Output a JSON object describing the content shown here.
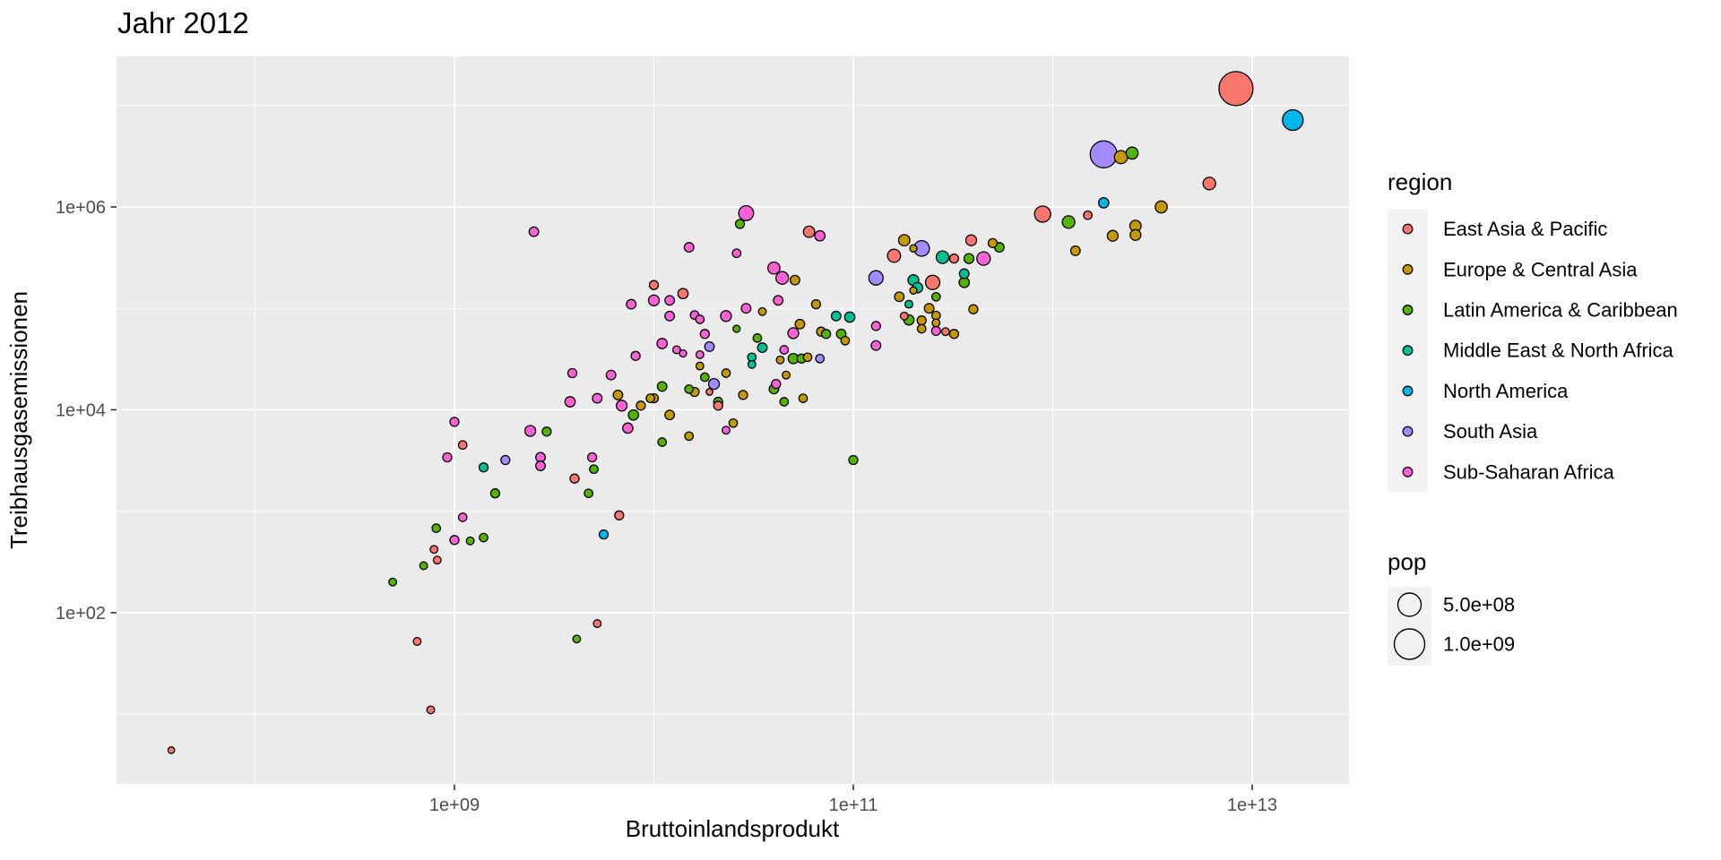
{
  "title": "Jahr 2012",
  "axes": {
    "x": {
      "label": "Bruttoinlandsprodukt",
      "scale": "log10",
      "domain": [
        20200000.0,
        30600000000000.0
      ],
      "ticks": [
        {
          "v": 1000000000.0,
          "label": "1e+09"
        },
        {
          "v": 100000000000.0,
          "label": "1e+11"
        },
        {
          "v": 10000000000000.0,
          "label": "1e+13"
        }
      ],
      "minor": [
        100000000.0,
        10000000000.0,
        1000000000000.0
      ]
    },
    "y": {
      "label": "Treibhausgasemissionen",
      "scale": "log10",
      "domain": [
        2.05,
        30500000.0
      ],
      "ticks": [
        {
          "v": 1000000.0,
          "label": "1e+06"
        },
        {
          "v": 10000.0,
          "label": "1e+04"
        },
        {
          "v": 100.0,
          "label": "1e+02"
        }
      ],
      "minor": [
        10000000.0,
        100000.0,
        1000.0,
        10.0
      ]
    }
  },
  "legend": {
    "title": "region"
  },
  "size_legend": {
    "title": "pop",
    "items": [
      {
        "label": "5.0e+08",
        "radius": 13
      },
      {
        "label": "1.0e+09",
        "radius": 17
      }
    ]
  },
  "style": {
    "panel_bg": "#EBEBEB",
    "grid_color": "#FFFFFF",
    "tick_color": "#333333",
    "tick_text": "#4D4D4D",
    "point_stroke": "#000000",
    "legend_key_bg": "#F2F2F2"
  },
  "chart_data": {
    "type": "scatter",
    "title": "Jahr 2012",
    "xlabel": "Bruttoinlandsprodukt",
    "ylabel": "Treibhausgasemissionen",
    "x_scale": "log10",
    "y_scale": "log10",
    "regions": [
      {
        "name": "East Asia & Pacific",
        "color": "#F8766D"
      },
      {
        "name": "Europe & Central Asia",
        "color": "#C49A00"
      },
      {
        "name": "Latin America & Caribbean",
        "color": "#53B400"
      },
      {
        "name": "Middle East & North Africa",
        "color": "#00C094"
      },
      {
        "name": "North America",
        "color": "#00B6EB"
      },
      {
        "name": "South Asia",
        "color": "#A58AFF"
      },
      {
        "name": "Sub-Saharan Africa",
        "color": "#FB61D7"
      }
    ],
    "point_format": [
      "region_index",
      "gdp",
      "ghg_emissions",
      "radius_px"
    ],
    "points": [
      [
        0,
        8300000000000.0,
        14700000.0,
        19
      ],
      [
        4,
        16000000000000.0,
        7200000.0,
        11.5
      ],
      [
        5,
        1800000000000.0,
        3300000.0,
        15
      ],
      [
        1,
        2200000000000.0,
        3100000.0,
        7.3
      ],
      [
        2,
        2500000000000.0,
        3400000.0,
        6.7
      ],
      [
        0,
        6100000000000.0,
        1700000.0,
        7
      ],
      [
        4,
        1800000000000.0,
        1100000.0,
        5.7
      ],
      [
        1,
        3500000000000.0,
        1000000.0,
        6.7
      ],
      [
        0,
        890000000000.0,
        850000.0,
        9
      ],
      [
        2,
        1200000000000.0,
        710000.0,
        7
      ],
      [
        0,
        1500000000000.0,
        830000.0,
        4.7
      ],
      [
        1,
        2600000000000.0,
        650000.0,
        6.3
      ],
      [
        1,
        2600000000000.0,
        530000.0,
        6
      ],
      [
        1,
        2000000000000.0,
        520000.0,
        6
      ],
      [
        1,
        1300000000000.0,
        370000.0,
        5.3
      ],
      [
        0,
        390000000000.0,
        470000.0,
        6
      ],
      [
        1,
        500000000000.0,
        440000.0,
        5
      ],
      [
        2,
        540000000000.0,
        400000.0,
        5.3
      ],
      [
        6,
        450000000000.0,
        310000.0,
        7.5
      ],
      [
        2,
        380000000000.0,
        310000.0,
        5.5
      ],
      [
        2,
        360000000000.0,
        180000.0,
        5.7
      ],
      [
        6,
        29000000000.0,
        870000.0,
        8.3
      ],
      [
        2,
        27000000000.0,
        680000.0,
        5
      ],
      [
        0,
        60000000000.0,
        570000.0,
        6.3
      ],
      [
        6,
        68000000000.0,
        520000.0,
        5.7
      ],
      [
        6,
        15000000000.0,
        400000.0,
        5.3
      ],
      [
        6,
        26000000000.0,
        350000.0,
        4.7
      ],
      [
        6,
        40000000000.0,
        250000.0,
        6.7
      ],
      [
        6,
        44000000000.0,
        200000.0,
        7
      ],
      [
        1,
        51000000000.0,
        190000.0,
        5.3
      ],
      [
        0,
        14000000000.0,
        140000.0,
        5.7
      ],
      [
        6,
        42000000000.0,
        120000.0,
        5.3
      ],
      [
        1,
        65000000000.0,
        110000.0,
        5
      ],
      [
        6,
        29000000000.0,
        100000.0,
        5.3
      ],
      [
        1,
        35000000000.0,
        93000.0,
        4.3
      ],
      [
        6,
        16000000000.0,
        86000.0,
        4.7
      ],
      [
        6,
        17000000000.0,
        78000.0,
        4.7
      ],
      [
        6,
        23000000000.0,
        84000.0,
        6
      ],
      [
        2,
        26000000000.0,
        63000.0,
        4
      ],
      [
        6,
        18000000000.0,
        56000.0,
        5
      ],
      [
        3,
        82000000000.0,
        84000.0,
        5.3
      ],
      [
        3,
        96000000000.0,
        82000.0,
        5.7
      ],
      [
        1,
        54000000000.0,
        70000.0,
        5.3
      ],
      [
        1,
        69000000000.0,
        59000.0,
        5
      ],
      [
        2,
        73000000000.0,
        56000.0,
        5
      ],
      [
        6,
        50000000000.0,
        57000.0,
        6
      ],
      [
        2,
        87000000000.0,
        56000.0,
        5.3
      ],
      [
        1,
        91000000000.0,
        48000.0,
        4.7
      ],
      [
        5,
        19000000000.0,
        42000.0,
        5.3
      ],
      [
        6,
        17000000000.0,
        35000.0,
        4.3
      ],
      [
        3,
        35000000000.0,
        41000.0,
        5.3
      ],
      [
        2,
        33000000000.0,
        51000.0,
        4.7
      ],
      [
        1,
        17000000000.0,
        27000.0,
        4.3
      ],
      [
        3,
        31000000000.0,
        33000.0,
        4.7
      ],
      [
        3,
        31000000000.0,
        28000.0,
        4.3
      ],
      [
        6,
        45000000000.0,
        39000.0,
        4.7
      ],
      [
        2,
        50000000000.0,
        32000.0,
        5.7
      ],
      [
        2,
        55000000000.0,
        32000.0,
        5
      ],
      [
        1,
        43000000000.0,
        31000.0,
        4.3
      ],
      [
        1,
        59000000000.0,
        33000.0,
        4.7
      ],
      [
        5,
        68000000000.0,
        32000.0,
        4.7
      ],
      [
        2,
        18000000000.0,
        21000.0,
        4.7
      ],
      [
        1,
        23000000000.0,
        23000.0,
        4.7
      ],
      [
        5,
        20000000000.0,
        18000.0,
        6
      ],
      [
        1,
        46000000000.0,
        22000.0,
        4.3
      ],
      [
        6,
        41000000000.0,
        18000.0,
        5
      ],
      [
        1,
        180000000000.0,
        470000.0,
        6.3
      ],
      [
        0,
        160000000000.0,
        330000.0,
        7.3
      ],
      [
        5,
        220000000000.0,
        390000.0,
        8.7
      ],
      [
        1,
        200000000000.0,
        390000.0,
        4
      ],
      [
        3,
        280000000000.0,
        320000.0,
        7
      ],
      [
        0,
        320000000000.0,
        310000.0,
        5
      ],
      [
        5,
        130000000000.0,
        200000.0,
        8
      ],
      [
        3,
        200000000000.0,
        190000.0,
        6
      ],
      [
        0,
        250000000000.0,
        180000.0,
        8
      ],
      [
        3,
        210000000000.0,
        160000.0,
        5.7
      ],
      [
        1,
        200000000000.0,
        150000.0,
        4
      ],
      [
        3,
        360000000000.0,
        220000.0,
        5.3
      ],
      [
        1,
        170000000000.0,
        130000.0,
        5.3
      ],
      [
        2,
        260000000000.0,
        130000.0,
        4.7
      ],
      [
        3,
        190000000000.0,
        110000.0,
        4.3
      ],
      [
        1,
        240000000000.0,
        100000.0,
        5.3
      ],
      [
        0,
        180000000000.0,
        84000.0,
        4.3
      ],
      [
        2,
        190000000000.0,
        77000.0,
        5.7
      ],
      [
        1,
        220000000000.0,
        76000.0,
        5
      ],
      [
        1,
        260000000000.0,
        85000.0,
        4.7
      ],
      [
        1,
        260000000000.0,
        72000.0,
        4.3
      ],
      [
        1,
        220000000000.0,
        63000.0,
        4.7
      ],
      [
        6,
        260000000000.0,
        60000.0,
        5
      ],
      [
        0,
        290000000000.0,
        59000.0,
        4.3
      ],
      [
        1,
        320000000000.0,
        56000.0,
        5
      ],
      [
        6,
        130000000000.0,
        67000.0,
        5
      ],
      [
        6,
        130000000000.0,
        43000.0,
        5.3
      ],
      [
        1,
        400000000000.0,
        98000.0,
        5
      ],
      [
        6,
        2500000000.0,
        570000.0,
        5.3
      ],
      [
        0,
        10000000000.0,
        170000.0,
        5
      ],
      [
        6,
        10000000000.0,
        120000.0,
        6
      ],
      [
        6,
        7700000000.0,
        110000.0,
        5.3
      ],
      [
        6,
        12000000000.0,
        120000.0,
        5.3
      ],
      [
        6,
        12000000000.0,
        84000.0,
        5.3
      ],
      [
        6,
        11000000000.0,
        45000.0,
        5.7
      ],
      [
        6,
        13000000000.0,
        39000.0,
        4.3
      ],
      [
        6,
        14000000000.0,
        36000.0,
        4
      ],
      [
        6,
        8100000000.0,
        34000.0,
        5
      ],
      [
        6,
        3900000000.0,
        23000.0,
        5
      ],
      [
        6,
        6100000000.0,
        22000.0,
        5.3
      ],
      [
        6,
        3800000000.0,
        12000.0,
        5.7
      ],
      [
        6,
        5200000000.0,
        13000.0,
        5.3
      ],
      [
        1,
        6600000000.0,
        14000.0,
        5.3
      ],
      [
        6,
        6900000000.0,
        11000.0,
        6
      ],
      [
        1,
        8600000000.0,
        11000.0,
        5
      ],
      [
        1,
        9600000000.0,
        13000.0,
        4.7
      ],
      [
        1,
        10000000000.0,
        13000.0,
        5
      ],
      [
        2,
        11000000000.0,
        17000.0,
        5.3
      ],
      [
        2,
        7900000000.0,
        8900.0,
        5.7
      ],
      [
        1,
        12000000000.0,
        8900.0,
        5.3
      ],
      [
        6,
        7400000000.0,
        6600.0,
        5.7
      ],
      [
        2,
        11000000000.0,
        4800.0,
        4.7
      ],
      [
        1,
        15000000000.0,
        5500.0,
        4.7
      ],
      [
        2,
        15000000000.0,
        16000.0,
        4.7
      ],
      [
        6,
        1000000000.0,
        7600.0,
        5
      ],
      [
        0,
        1100000000.0,
        4500.0,
        4.7
      ],
      [
        6,
        920000000.0,
        3400.0,
        5
      ],
      [
        6,
        2400000000.0,
        6200.0,
        6
      ],
      [
        2,
        2900000000.0,
        6100.0,
        5
      ],
      [
        3,
        1400000000.0,
        2700.0,
        5
      ],
      [
        5,
        1800000000.0,
        3200.0,
        5
      ],
      [
        6,
        2700000000.0,
        3400.0,
        5.3
      ],
      [
        6,
        2700000000.0,
        2800.0,
        5.3
      ],
      [
        6,
        4900000000.0,
        3400.0,
        5
      ],
      [
        2,
        5000000000.0,
        2600.0,
        4.7
      ],
      [
        0,
        4000000000.0,
        2100.0,
        5
      ],
      [
        2,
        1600000000.0,
        1500.0,
        5
      ],
      [
        2,
        4700000000.0,
        1500.0,
        4.7
      ],
      [
        0,
        6700000000.0,
        910.0,
        5
      ],
      [
        4,
        5600000000.0,
        590.0,
        5
      ],
      [
        6,
        1100000000.0,
        870.0,
        4.7
      ],
      [
        2,
        810000000.0,
        680.0,
        4.7
      ],
      [
        6,
        1000000000.0,
        520.0,
        5
      ],
      [
        2,
        1200000000.0,
        510.0,
        4.3
      ],
      [
        2,
        1400000000.0,
        550.0,
        4.7
      ],
      [
        0,
        790000000.0,
        420.0,
        4.3
      ],
      [
        0,
        820000000.0,
        330.0,
        4.3
      ],
      [
        2,
        700000000.0,
        290.0,
        4.3
      ],
      [
        2,
        490000000.0,
        200.0,
        4.3
      ],
      [
        1,
        16000000000.0,
        15000.0,
        5
      ],
      [
        0,
        19000000000.0,
        15000.0,
        3.7
      ],
      [
        1,
        28000000000.0,
        14000.0,
        5
      ],
      [
        2,
        21000000000.0,
        12000.0,
        5
      ],
      [
        0,
        21000000000.0,
        11000.0,
        5
      ],
      [
        2,
        40000000000.0,
        16000.0,
        5.3
      ],
      [
        1,
        56000000000.0,
        13000.0,
        4.7
      ],
      [
        2,
        45000000000.0,
        12000.0,
        4.7
      ],
      [
        1,
        25000000000.0,
        7400.0,
        4.7
      ],
      [
        6,
        23000000000.0,
        6300.0,
        4.3
      ],
      [
        2,
        100000000000.0,
        3200.0,
        5
      ],
      [
        0,
        650000000.0,
        52.0,
        4.3
      ],
      [
        0,
        5200000000.0,
        78.0,
        4.3
      ],
      [
        2,
        4100000000.0,
        55.0,
        4.3
      ],
      [
        0,
        760000000.0,
        11.0,
        4.3
      ],
      [
        0,
        38000000.0,
        4.4,
        3.7
      ]
    ]
  }
}
